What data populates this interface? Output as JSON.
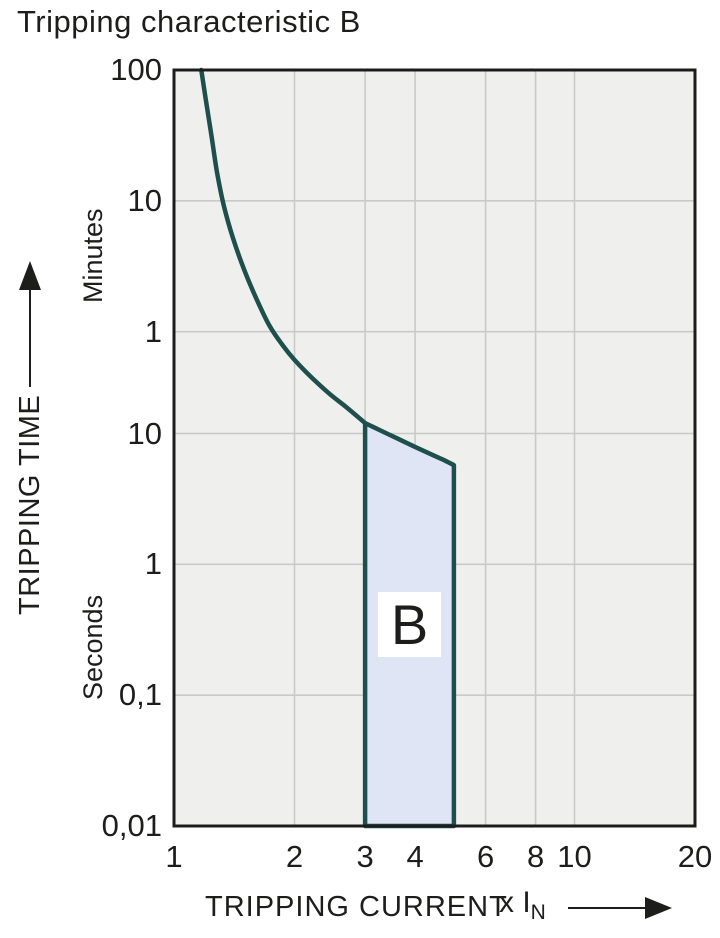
{
  "title": "Tripping characteristic B",
  "y_axis": {
    "title": "TRIPPING TIME",
    "unit_upper": "Minutes",
    "unit_lower": "Seconds",
    "ticks": [
      {
        "label": "100",
        "seconds": 6000
      },
      {
        "label": "10",
        "seconds": 600
      },
      {
        "label": "1",
        "seconds": 60
      },
      {
        "label": "10",
        "seconds": 10
      },
      {
        "label": "1",
        "seconds": 1
      },
      {
        "label": "0,1",
        "seconds": 0.1
      },
      {
        "label": "0,01",
        "seconds": 0.01
      }
    ]
  },
  "x_axis": {
    "title": "TRIPPING CURRENT",
    "multiplier_label": "x I",
    "multiplier_subscript": "N",
    "ticks": [
      {
        "label": "1",
        "value": 1
      },
      {
        "label": "2",
        "value": 2
      },
      {
        "label": "3",
        "value": 3
      },
      {
        "label": "4",
        "value": 4
      },
      {
        "label": "6",
        "value": 6
      },
      {
        "label": "8",
        "value": 8
      },
      {
        "label": "10",
        "value": 10
      },
      {
        "label": "20",
        "value": 20
      }
    ]
  },
  "chart_data": {
    "type": "line",
    "title": "Tripping characteristic B",
    "x_scale": "log",
    "y_scale": "log",
    "xlabel": "TRIPPING CURRENT x IN",
    "ylabel": "TRIPPING TIME",
    "xlim": [
      1,
      20
    ],
    "ylim_seconds": [
      0.01,
      6000
    ],
    "x_gridlines": [
      2,
      3,
      4,
      6,
      8,
      10
    ],
    "y_gridlines_seconds": [
      600,
      60,
      10,
      1,
      0.1
    ],
    "grid": true,
    "legend": false,
    "series": [
      {
        "name": "tripping-time-curve",
        "points_x_in_vs_seconds": [
          [
            1.17,
            6000
          ],
          [
            1.2,
            3600
          ],
          [
            1.24,
            1900
          ],
          [
            1.28,
            1000
          ],
          [
            1.33,
            560
          ],
          [
            1.4,
            320
          ],
          [
            1.49,
            185
          ],
          [
            1.6,
            110
          ],
          [
            1.73,
            67
          ],
          [
            1.87,
            47
          ],
          [
            2.0,
            36.5
          ],
          [
            2.2,
            27
          ],
          [
            2.45,
            20
          ],
          [
            2.7,
            15.8
          ],
          [
            3.0,
            12
          ],
          [
            3.3,
            10.45
          ],
          [
            3.6,
            9.2
          ],
          [
            4.0,
            7.9
          ],
          [
            4.4,
            6.9
          ],
          [
            4.7,
            6.3
          ],
          [
            5.0,
            5.73
          ]
        ]
      }
    ],
    "region": {
      "label": "B",
      "x_from": 3,
      "x_to": 5,
      "t_at_x_from_seconds": 12,
      "t_at_x_to_seconds": 5.73,
      "t_bottom_seconds": 0.01
    }
  },
  "colors": {
    "curve": "#1e4f4c",
    "region_fill": "#dfe5f4",
    "region_label_background": "#ffffff",
    "plot_background": "#efefed",
    "gridline": "#c8cac9",
    "frame": "#1c1c1c",
    "text": "#1d1d1b",
    "page_background": "#ffffff"
  }
}
